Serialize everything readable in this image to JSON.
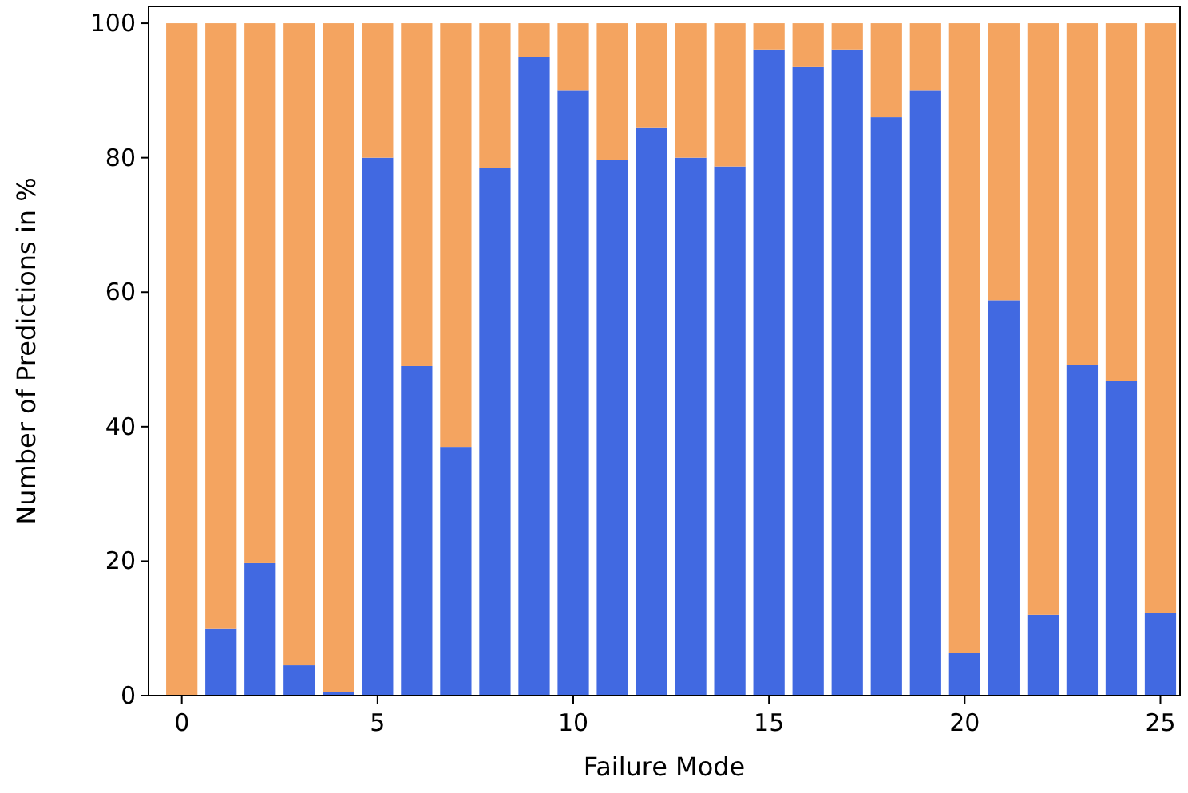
{
  "chart_data": {
    "type": "bar",
    "stacked": true,
    "xlabel": "Failure Mode",
    "ylabel": "Number of Predictions in %",
    "x": [
      0,
      1,
      2,
      3,
      4,
      5,
      6,
      7,
      8,
      9,
      10,
      11,
      12,
      13,
      14,
      15,
      16,
      17,
      18,
      19,
      20,
      21,
      22,
      23,
      24,
      25
    ],
    "series": [
      {
        "color": "#4169e1",
        "values": [
          0,
          10,
          19.7,
          4.5,
          0.5,
          80,
          49,
          37,
          78.5,
          95,
          90,
          79.7,
          84.5,
          80,
          78.7,
          96,
          93.5,
          96,
          86,
          90,
          6.3,
          58.8,
          12,
          49.2,
          46.8,
          12.3
        ]
      },
      {
        "color": "#f4a460",
        "values": [
          100,
          90,
          80.3,
          95.5,
          99.5,
          20,
          51,
          63,
          21.5,
          5,
          10,
          20.3,
          15.5,
          20,
          21.3,
          4,
          6.5,
          4,
          14,
          10,
          93.7,
          41.2,
          88,
          50.8,
          53.2,
          87.7
        ]
      }
    ],
    "xlim": [
      -0.85,
      25.5
    ],
    "xticks": [
      0,
      5,
      10,
      15,
      20,
      25
    ],
    "ylim": [
      0,
      102.5
    ],
    "yticks": [
      0,
      20,
      40,
      60,
      80,
      100
    ]
  }
}
